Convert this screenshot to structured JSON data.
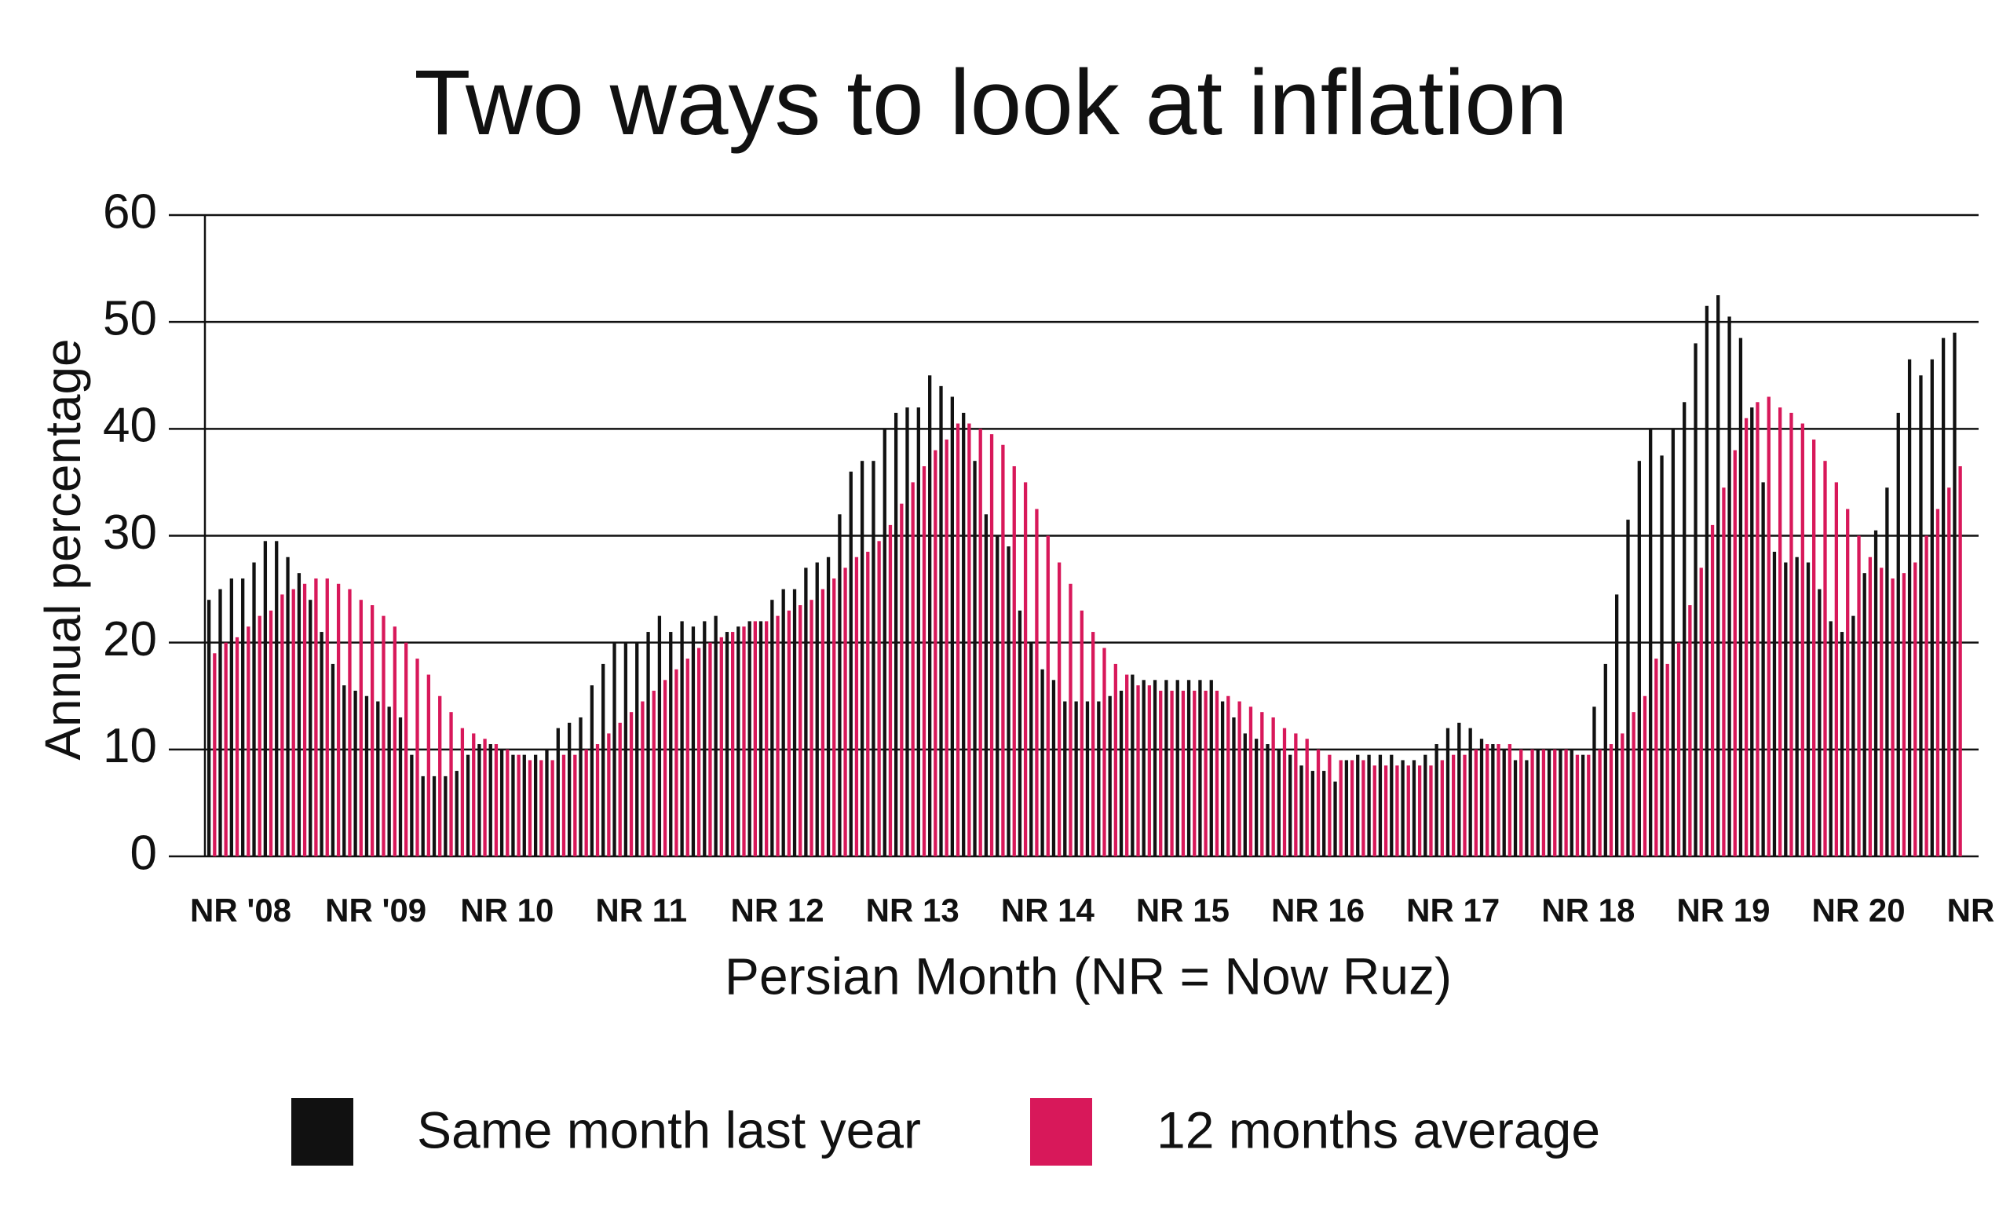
{
  "chart_data": {
    "type": "bar",
    "title": "Two ways to look at inflation",
    "y_label": "Annual percentage",
    "x_label": "Persian Month (NR = Now Ruz)",
    "categories": [
      "NR '08",
      null,
      null,
      null,
      null,
      null,
      null,
      null,
      null,
      null,
      null,
      null,
      "NR '09",
      null,
      null,
      null,
      null,
      null,
      null,
      null,
      null,
      null,
      null,
      null,
      "NR 10",
      null,
      null,
      null,
      null,
      null,
      null,
      null,
      null,
      null,
      null,
      null,
      "NR 11",
      null,
      null,
      null,
      null,
      null,
      null,
      null,
      null,
      null,
      null,
      null,
      "NR 12",
      null,
      null,
      null,
      null,
      null,
      null,
      null,
      null,
      null,
      null,
      null,
      "NR 13",
      null,
      null,
      null,
      null,
      null,
      null,
      null,
      null,
      null,
      null,
      null,
      "NR 14",
      null,
      null,
      null,
      null,
      null,
      null,
      null,
      null,
      null,
      null,
      null,
      "NR 15",
      null,
      null,
      null,
      null,
      null,
      null,
      null,
      null,
      null,
      null,
      null,
      "NR 16",
      null,
      null,
      null,
      null,
      null,
      null,
      null,
      null,
      null,
      null,
      null,
      "NR 17",
      null,
      null,
      null,
      null,
      null,
      null,
      null,
      null,
      null,
      null,
      null,
      "NR 18",
      null,
      null,
      null,
      null,
      null,
      null,
      null,
      null,
      null,
      null,
      null,
      "NR 19",
      null,
      null,
      null,
      null,
      null,
      null,
      null,
      null,
      null,
      null,
      null,
      "NR 20",
      null,
      null,
      null,
      null,
      null,
      null,
      null,
      null,
      null,
      null,
      null,
      "NR"
    ],
    "series": [
      {
        "name": "Same month last year",
        "color": "#111111",
        "values": [
          24,
          25,
          26,
          26,
          27.5,
          29.5,
          29.5,
          28,
          26.5,
          24,
          21,
          18,
          16,
          15.5,
          15,
          14.5,
          14,
          13,
          9.5,
          7.5,
          7.5,
          7.5,
          8,
          9.5,
          10.5,
          10.5,
          10,
          9.5,
          9.5,
          9.5,
          10,
          12,
          12.5,
          13,
          16,
          18,
          20,
          20,
          20,
          21,
          22.5,
          21,
          22,
          21.5,
          22,
          22.5,
          21,
          21.5,
          22,
          22,
          24,
          25,
          25,
          27,
          27.5,
          28,
          32,
          36,
          37,
          37,
          40,
          41.5,
          42,
          42,
          45,
          44,
          43,
          41.5,
          37,
          32,
          30,
          29,
          23,
          20,
          17.5,
          16.5,
          14.5,
          14.5,
          14.5,
          14.5,
          15,
          15.5,
          17,
          16.5,
          16.5,
          16.5,
          16.5,
          16.5,
          16.5,
          16.5,
          14.5,
          13,
          11.5,
          11,
          10.5,
          10,
          9.5,
          8.5,
          8,
          8,
          7,
          9,
          9.5,
          9.5,
          9.5,
          9.5,
          9,
          9,
          9.5,
          10.5,
          12,
          12.5,
          12,
          11,
          10.5,
          10,
          9,
          9,
          10,
          10,
          10,
          10,
          9.5,
          14,
          18,
          24.5,
          31.5,
          37,
          40,
          37.5,
          40,
          42.5,
          48,
          51.5,
          52.5,
          50.5,
          48.5,
          42,
          35,
          28.5,
          27.5,
          28,
          27.5,
          25,
          22,
          21,
          22.5,
          26.5,
          30.5,
          34.5,
          41.5,
          46.5,
          45,
          46.5,
          48.5,
          49,
          null
        ]
      },
      {
        "name": "12 months average",
        "color": "#d8185a",
        "values": [
          19,
          20,
          20.5,
          21.5,
          22.5,
          23,
          24.5,
          25,
          25.5,
          26,
          26,
          25.5,
          25,
          24,
          23.5,
          22.5,
          21.5,
          20,
          18.5,
          17,
          15,
          13.5,
          12,
          11.5,
          11,
          10.5,
          10,
          9.5,
          9,
          9,
          9,
          9.5,
          9.5,
          10,
          10.5,
          11.5,
          12.5,
          13.5,
          14.5,
          15.5,
          16.5,
          17.5,
          18.5,
          19.5,
          20,
          20.5,
          21,
          21.5,
          22,
          22,
          22.5,
          23,
          23.5,
          24,
          25,
          26,
          27,
          28,
          28.5,
          29.5,
          31,
          33,
          35,
          36.5,
          38,
          39,
          40.5,
          40.5,
          40,
          39.5,
          38.5,
          36.5,
          35,
          32.5,
          30,
          27.5,
          25.5,
          23,
          21,
          19.5,
          18,
          17,
          16,
          16,
          15.5,
          15.5,
          15.5,
          15.5,
          15.5,
          15.5,
          15,
          14.5,
          14,
          13.5,
          13,
          12,
          11.5,
          11,
          10,
          9.5,
          9,
          9,
          9,
          8.5,
          8.5,
          8.5,
          8.5,
          8.5,
          8.5,
          9,
          9.5,
          9.5,
          10,
          10.5,
          10.5,
          10.5,
          10,
          10,
          10,
          10,
          10,
          9.5,
          9.5,
          10,
          10.5,
          11.5,
          13.5,
          15,
          18.5,
          18,
          20,
          23.5,
          27,
          31,
          34.5,
          38,
          41,
          42.5,
          43,
          42,
          41.5,
          40.5,
          39,
          37,
          35,
          32.5,
          30,
          28,
          27,
          26,
          26.5,
          27.5,
          30,
          32.5,
          34.5,
          36.5,
          null
        ]
      }
    ],
    "ylim": [
      0,
      60
    ],
    "yticks": [
      0,
      10,
      20,
      30,
      40,
      50,
      60
    ],
    "grid": true
  }
}
